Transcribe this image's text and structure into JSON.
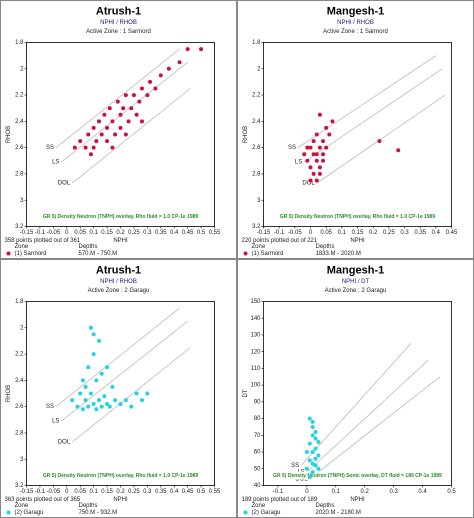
{
  "chart_data": [
    {
      "type": "scatter",
      "title": "Atrush-1",
      "subtitle": "NPHI / RHOB",
      "zone": "Active Zone : 1  Sarmord",
      "xlabel": "NPHI",
      "ylabel": "RHOB",
      "color": "#d0103a",
      "yinvert": true,
      "xlim": [
        -0.15,
        0.55
      ],
      "xticks": [
        -0.15,
        -0.1,
        -0.05,
        0,
        0.05,
        0.1,
        0.15,
        0.2,
        0.25,
        0.3,
        0.35,
        0.4,
        0.45,
        0.5,
        0.55
      ],
      "ylim": [
        1.8,
        3.2
      ],
      "yticks": [
        1.8,
        2,
        2.2,
        2.4,
        2.6,
        2.8,
        3,
        3.2
      ],
      "overlay_text": "GR 5) Density Neutron (TNPH) overlay, Rho fluid = 1.0 CP-1e 1989",
      "overlay_lines": [
        {
          "name": "SS",
          "x": [
            -0.04,
            0.42
          ],
          "y": [
            2.6,
            1.85
          ]
        },
        {
          "name": "LS",
          "x": [
            -0.02,
            0.45
          ],
          "y": [
            2.71,
            1.95
          ]
        },
        {
          "name": "DOL",
          "x": [
            0.02,
            0.46
          ],
          "y": [
            2.87,
            2.15
          ]
        }
      ],
      "footer": "358 points plotted out of 361",
      "zone_header": "Zone",
      "depth_header": "Depths",
      "series_name": "(1) Sarmord",
      "depths": "570.M - 750.M",
      "x": [
        0.05,
        0.07,
        0.08,
        0.1,
        0.1,
        0.12,
        0.13,
        0.14,
        0.15,
        0.15,
        0.16,
        0.17,
        0.18,
        0.19,
        0.2,
        0.2,
        0.21,
        0.22,
        0.23,
        0.24,
        0.25,
        0.26,
        0.27,
        0.28,
        0.3,
        0.31,
        0.33,
        0.35,
        0.38,
        0.42,
        0.45,
        0.5,
        0.03,
        0.09,
        0.11,
        0.17,
        0.22,
        0.28
      ],
      "y": [
        2.55,
        2.6,
        2.5,
        2.45,
        2.6,
        2.4,
        2.5,
        2.35,
        2.45,
        2.55,
        2.3,
        2.4,
        2.5,
        2.25,
        2.35,
        2.45,
        2.3,
        2.2,
        2.4,
        2.3,
        2.2,
        2.35,
        2.25,
        2.15,
        2.2,
        2.1,
        2.15,
        2.05,
        2.0,
        1.95,
        1.85,
        1.85,
        2.6,
        2.65,
        2.55,
        2.6,
        2.5,
        2.4
      ]
    },
    {
      "type": "scatter",
      "title": "Mangesh-1",
      "subtitle": "NPHI / RHOB",
      "zone": "Active Zone : 1  Sarmord",
      "xlabel": "NPHI",
      "ylabel": "RHOB",
      "color": "#d0103a",
      "yinvert": true,
      "xlim": [
        -0.15,
        0.45
      ],
      "xticks": [
        -0.15,
        -0.1,
        -0.05,
        0,
        0.05,
        0.1,
        0.15,
        0.2,
        0.25,
        0.3,
        0.35,
        0.4,
        0.45
      ],
      "ylim": [
        1.8,
        3.2
      ],
      "yticks": [
        1.8,
        2,
        2.2,
        2.4,
        2.6,
        2.8,
        3,
        3.2
      ],
      "overlay_text": "GR 5) Density Neutron (TNPH) overlay, Rho fluid = 1.0 CP-1e 1989",
      "overlay_lines": [
        {
          "name": "SS",
          "x": [
            -0.04,
            0.4
          ],
          "y": [
            2.6,
            1.9
          ]
        },
        {
          "name": "LS",
          "x": [
            -0.02,
            0.42
          ],
          "y": [
            2.71,
            2.0
          ]
        },
        {
          "name": "DOL",
          "x": [
            0.02,
            0.43
          ],
          "y": [
            2.87,
            2.2
          ]
        }
      ],
      "footer": "220 points plotted out of 221",
      "zone_header": "Zone",
      "depth_header": "Depths",
      "series_name": "(1) Sarmord",
      "depths": "1833.M - 2020.M",
      "x": [
        -0.02,
        -0.01,
        0,
        0,
        0.01,
        0.01,
        0.02,
        0.02,
        0.03,
        0.03,
        0.04,
        0.04,
        0.05,
        0,
        0.01,
        0.02,
        0.03,
        -0.01,
        0.02,
        0.04,
        0.05,
        0.06,
        0.07,
        0.22,
        0.28,
        0.03
      ],
      "y": [
        2.65,
        2.7,
        2.6,
        2.75,
        2.65,
        2.8,
        2.7,
        2.85,
        2.6,
        2.75,
        2.65,
        2.7,
        2.6,
        2.85,
        2.55,
        2.5,
        2.8,
        2.6,
        2.65,
        2.55,
        2.45,
        2.5,
        2.4,
        2.55,
        2.62,
        2.35
      ]
    },
    {
      "type": "scatter",
      "title": "Atrush-1",
      "subtitle": "NPHI / RHOB",
      "zone": "Active Zone : 2  Garagu",
      "xlabel": "NPHI",
      "ylabel": "RHOB",
      "color": "#22d3e0",
      "yinvert": true,
      "xlim": [
        -0.15,
        0.55
      ],
      "xticks": [
        -0.15,
        -0.1,
        -0.05,
        0,
        0.05,
        0.1,
        0.15,
        0.2,
        0.25,
        0.3,
        0.35,
        0.4,
        0.45,
        0.5,
        0.55
      ],
      "ylim": [
        1.8,
        3.2
      ],
      "yticks": [
        1.8,
        2,
        2.2,
        2.4,
        2.6,
        2.8,
        3,
        3.2
      ],
      "overlay_text": "GR 5) Density Neutron (TNPH) overlay, Rho fluid = 1.0 CP-1e 1989",
      "overlay_lines": [
        {
          "name": "SS",
          "x": [
            -0.04,
            0.42
          ],
          "y": [
            2.6,
            1.85
          ]
        },
        {
          "name": "LS",
          "x": [
            -0.02,
            0.45
          ],
          "y": [
            2.71,
            1.95
          ]
        },
        {
          "name": "DOL",
          "x": [
            0.02,
            0.46
          ],
          "y": [
            2.87,
            2.15
          ]
        }
      ],
      "footer": "363 points plotted out of 365",
      "zone_header": "Zone",
      "depth_header": "Depths",
      "series_name": "(2) Garagu",
      "depths": "750.M - 932.M",
      "x": [
        0.02,
        0.04,
        0.05,
        0.06,
        0.07,
        0.08,
        0.09,
        0.1,
        0.11,
        0.12,
        0.13,
        0.14,
        0.15,
        0.16,
        0.18,
        0.2,
        0.22,
        0.24,
        0.26,
        0.28,
        0.3,
        0.08,
        0.1,
        0.12,
        0.09,
        0.11,
        0.13,
        0.07,
        0.15,
        0.1,
        0.06,
        0.17
      ],
      "y": [
        2.55,
        2.6,
        2.5,
        2.62,
        2.55,
        2.6,
        2.5,
        2.58,
        2.62,
        2.55,
        2.6,
        2.52,
        2.58,
        2.6,
        2.55,
        2.58,
        2.55,
        2.6,
        2.5,
        2.55,
        2.5,
        2.3,
        2.2,
        2.1,
        2.0,
        2.4,
        2.35,
        2.45,
        2.3,
        2.05,
        2.4,
        2.45
      ]
    },
    {
      "type": "scatter",
      "title": "Mangesh-1",
      "subtitle": "NPHI / DT",
      "zone": "Active Zone : 2  Garagu",
      "xlabel": "NPHI",
      "ylabel": "DT",
      "color": "#22d3e0",
      "yinvert": false,
      "xlim": [
        -0.15,
        0.5
      ],
      "xticks": [
        -0.1,
        0,
        0.1,
        0.2,
        0.3,
        0.4,
        0.5
      ],
      "ylim": [
        40,
        150
      ],
      "yticks": [
        40,
        50,
        60,
        70,
        80,
        90,
        100,
        110,
        120,
        130,
        140,
        150
      ],
      "overlay_text": "GR 5) Density Neutron (TNPH) Sonic overlay, DT fluid = 189 CP-1e 1989",
      "overlay_lines": [
        {
          "name": "SS",
          "x": [
            -0.02,
            0.36
          ],
          "y": [
            52,
            125
          ]
        },
        {
          "name": "LS",
          "x": [
            0,
            0.42
          ],
          "y": [
            48,
            115
          ]
        },
        {
          "name": "DOL",
          "x": [
            0.01,
            0.46
          ],
          "y": [
            44,
            105
          ]
        }
      ],
      "footer": "189 points plotted out of 189",
      "zone_header": "Zone",
      "depth_header": "Depths",
      "series_name": "(2) Garagu",
      "depths": "2020.M - 2180.M",
      "x": [
        0,
        0.01,
        0.02,
        0.03,
        0.04,
        0.01,
        0.02,
        0.03,
        0.02,
        0.01,
        0.03,
        0.04,
        0.02,
        0.01,
        0.03,
        0.02,
        0,
        0.04,
        0.02,
        0.03
      ],
      "y": [
        50,
        55,
        60,
        52,
        58,
        65,
        48,
        62,
        70,
        45,
        56,
        66,
        75,
        80,
        72,
        53,
        60,
        50,
        78,
        68
      ]
    }
  ]
}
